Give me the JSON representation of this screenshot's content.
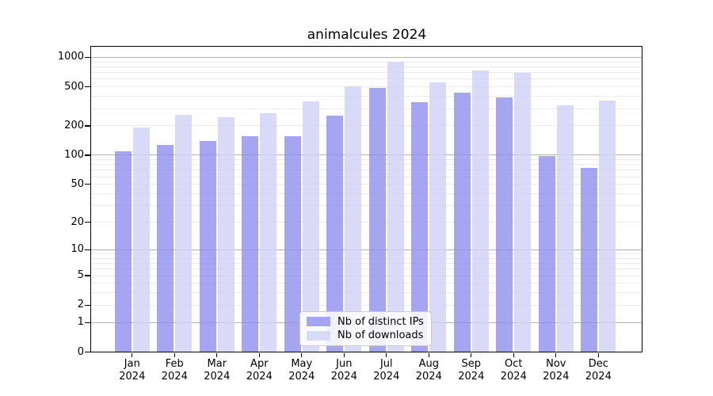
{
  "chart_data": {
    "type": "bar",
    "title": "animalcules 2024",
    "x_year": "2024",
    "categories": [
      "Jan",
      "Feb",
      "Mar",
      "Apr",
      "May",
      "Jun",
      "Jul",
      "Aug",
      "Sep",
      "Oct",
      "Nov",
      "Dec"
    ],
    "series": [
      {
        "name": "Nb of distinct IPs",
        "color": "#A5A5F2",
        "values": [
          109,
          127,
          140,
          156,
          157,
          254,
          485,
          349,
          439,
          388,
          99,
          74
        ]
      },
      {
        "name": "Nb of downloads",
        "color": "#D9D9F8",
        "values": [
          192,
          258,
          245,
          271,
          354,
          507,
          903,
          553,
          735,
          695,
          322,
          365
        ]
      }
    ],
    "y_ticks": [
      0,
      1,
      2,
      5,
      10,
      20,
      50,
      100,
      200,
      500,
      1000
    ],
    "y_scale": "log10(value+1)",
    "ylim": [
      0,
      1280
    ],
    "grid": "on",
    "legend_position": "lower center"
  },
  "colors": {
    "major_grid": "#b2b2b2",
    "minor_grid": "#ebebeb",
    "spine": "#000000",
    "background": "#ffffff",
    "legend_border": "#cccccc",
    "text": "#000000"
  }
}
